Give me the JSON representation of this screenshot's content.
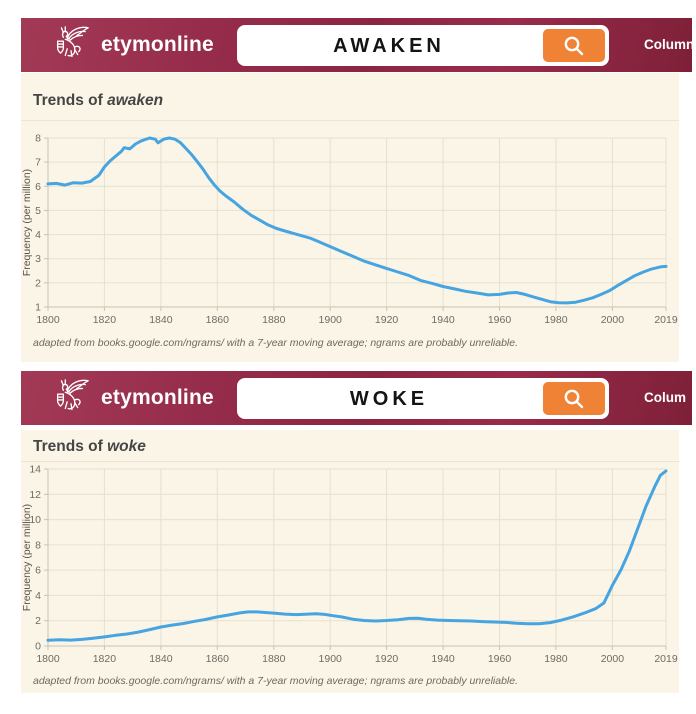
{
  "theme": {
    "header_maroon": "#93294a",
    "cream_bg": "#fbf5e7",
    "accent_orange": "#ef8234",
    "line_blue": "#46a4e1",
    "grid": "#e7e0cd",
    "axis": "#c9c3b1",
    "title_text": "#454545",
    "tick_text": "#6f6b63",
    "footnote_text": "#6e695e"
  },
  "sections": [
    {
      "header": {
        "brand": "etymonline",
        "logo_icon": "griffin-logo-icon",
        "search_value": "AWAKEN",
        "search_button_icon": "magnifier-icon",
        "nav_label": "Column"
      },
      "title_prefix": "Trends of ",
      "title_word": "awaken",
      "footnote": "adapted from books.google.com/ngrams/ with a 7-year moving average; ngrams are probably unreliable."
    },
    {
      "header": {
        "brand": "etymonline",
        "logo_icon": "griffin-logo-icon",
        "search_value": "WOKE",
        "search_button_icon": "magnifier-icon",
        "nav_label": "Colum"
      },
      "title_prefix": "Trends of ",
      "title_word": "woke",
      "footnote": "adapted from books.google.com/ngrams/ with a 7-year moving average; ngrams are probably unreliable."
    }
  ],
  "chart_data": [
    {
      "type": "line",
      "title": "Trends of awaken",
      "xlabel": "",
      "ylabel": "Frequency (per million)",
      "xlim": [
        1800,
        2019
      ],
      "ylim": [
        1,
        8
      ],
      "x_ticks": [
        1800,
        1820,
        1840,
        1860,
        1880,
        1900,
        1920,
        1940,
        1960,
        1980,
        2000,
        2019
      ],
      "y_ticks": [
        1,
        2,
        3,
        4,
        5,
        6,
        7,
        8
      ],
      "grid": true,
      "legend": false,
      "line_color": "#46a4e1",
      "series": [
        {
          "name": "awaken",
          "x": [
            1800,
            1803,
            1806,
            1809,
            1812,
            1815,
            1818,
            1820,
            1822,
            1824,
            1826,
            1827,
            1829,
            1831,
            1833,
            1836,
            1838,
            1839,
            1841,
            1843,
            1845,
            1847,
            1849,
            1851,
            1853,
            1855,
            1857,
            1859,
            1861,
            1863,
            1866,
            1869,
            1872,
            1875,
            1878,
            1881,
            1884,
            1887,
            1890,
            1893,
            1896,
            1900,
            1904,
            1908,
            1912,
            1916,
            1920,
            1924,
            1928,
            1932,
            1936,
            1940,
            1944,
            1948,
            1952,
            1956,
            1960,
            1963,
            1966,
            1969,
            1972,
            1975,
            1978,
            1981,
            1984,
            1987,
            1990,
            1993,
            1996,
            1999,
            2002,
            2005,
            2008,
            2011,
            2014,
            2017,
            2019
          ],
          "y": [
            6.1,
            6.12,
            6.05,
            6.15,
            6.13,
            6.2,
            6.45,
            6.8,
            7.05,
            7.25,
            7.45,
            7.6,
            7.55,
            7.75,
            7.88,
            8.0,
            7.95,
            7.8,
            7.95,
            8.0,
            7.95,
            7.8,
            7.55,
            7.3,
            7.0,
            6.7,
            6.35,
            6.05,
            5.8,
            5.6,
            5.35,
            5.05,
            4.8,
            4.6,
            4.4,
            4.25,
            4.15,
            4.05,
            3.95,
            3.85,
            3.7,
            3.5,
            3.3,
            3.1,
            2.9,
            2.75,
            2.6,
            2.45,
            2.3,
            2.1,
            1.98,
            1.85,
            1.75,
            1.65,
            1.58,
            1.5,
            1.52,
            1.58,
            1.6,
            1.52,
            1.42,
            1.32,
            1.22,
            1.18,
            1.17,
            1.2,
            1.28,
            1.38,
            1.52,
            1.68,
            1.9,
            2.1,
            2.3,
            2.45,
            2.58,
            2.66,
            2.68
          ]
        }
      ]
    },
    {
      "type": "line",
      "title": "Trends of woke",
      "xlabel": "",
      "ylabel": "Frequency (per million)",
      "xlim": [
        1800,
        2019
      ],
      "ylim": [
        0,
        14
      ],
      "x_ticks": [
        1800,
        1820,
        1840,
        1860,
        1880,
        1900,
        1920,
        1940,
        1960,
        1980,
        2000,
        2019
      ],
      "y_ticks": [
        0,
        2,
        4,
        6,
        8,
        10,
        12,
        14
      ],
      "grid": true,
      "legend": false,
      "line_color": "#46a4e1",
      "series": [
        {
          "name": "woke",
          "x": [
            1800,
            1804,
            1808,
            1812,
            1816,
            1820,
            1824,
            1828,
            1832,
            1836,
            1840,
            1844,
            1848,
            1852,
            1856,
            1860,
            1864,
            1868,
            1871,
            1874,
            1877,
            1880,
            1884,
            1888,
            1892,
            1895,
            1898,
            1901,
            1904,
            1908,
            1912,
            1916,
            1920,
            1924,
            1928,
            1931,
            1934,
            1938,
            1942,
            1946,
            1950,
            1954,
            1958,
            1962,
            1966,
            1970,
            1974,
            1978,
            1982,
            1986,
            1990,
            1994,
            1997,
            2000,
            2003,
            2006,
            2009,
            2012,
            2015,
            2017,
            2019
          ],
          "y": [
            0.45,
            0.5,
            0.47,
            0.52,
            0.62,
            0.72,
            0.85,
            0.95,
            1.1,
            1.3,
            1.5,
            1.65,
            1.78,
            1.95,
            2.1,
            2.3,
            2.45,
            2.62,
            2.7,
            2.7,
            2.65,
            2.6,
            2.52,
            2.48,
            2.52,
            2.55,
            2.5,
            2.4,
            2.3,
            2.12,
            2.02,
            1.98,
            2.02,
            2.08,
            2.18,
            2.2,
            2.12,
            2.05,
            2.02,
            2.0,
            1.98,
            1.93,
            1.9,
            1.87,
            1.8,
            1.76,
            1.76,
            1.85,
            2.05,
            2.3,
            2.6,
            2.95,
            3.4,
            4.8,
            6.0,
            7.5,
            9.3,
            11.1,
            12.6,
            13.5,
            13.85
          ]
        }
      ]
    }
  ]
}
